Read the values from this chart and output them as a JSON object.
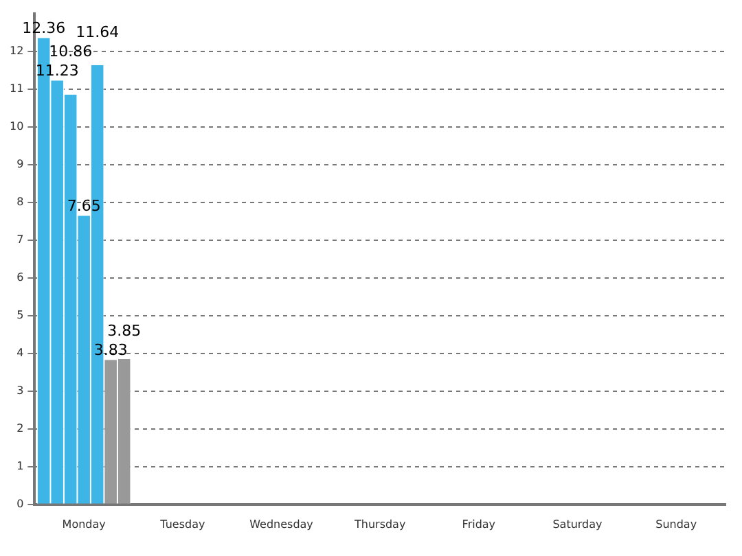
{
  "chart_data": {
    "type": "bar",
    "categories": [
      "Monday",
      "Tuesday",
      "Wednesday",
      "Thursday",
      "Friday",
      "Saturday",
      "Sunday"
    ],
    "series": [
      {
        "color": "#3db5e6",
        "values": [
          12.36,
          null,
          null,
          null,
          null,
          null,
          null
        ]
      },
      {
        "color": "#3db5e6",
        "values": [
          11.23,
          null,
          null,
          null,
          null,
          null,
          null
        ]
      },
      {
        "color": "#3db5e6",
        "values": [
          10.86,
          null,
          null,
          null,
          null,
          null,
          null
        ]
      },
      {
        "color": "#3db5e6",
        "values": [
          7.65,
          null,
          null,
          null,
          null,
          null,
          null
        ]
      },
      {
        "color": "#3db5e6",
        "values": [
          11.64,
          null,
          null,
          null,
          null,
          null,
          null
        ]
      },
      {
        "color": "#999999",
        "values": [
          3.83,
          null,
          null,
          null,
          null,
          null,
          null
        ]
      },
      {
        "color": "#999999",
        "values": [
          3.85,
          null,
          null,
          null,
          null,
          null,
          null
        ]
      }
    ],
    "ylim": [
      0,
      13
    ],
    "yticks": [
      0,
      1,
      2,
      3,
      4,
      5,
      6,
      7,
      8,
      9,
      10,
      11,
      12
    ],
    "grid": "y",
    "data_labels": true,
    "legend": false
  }
}
